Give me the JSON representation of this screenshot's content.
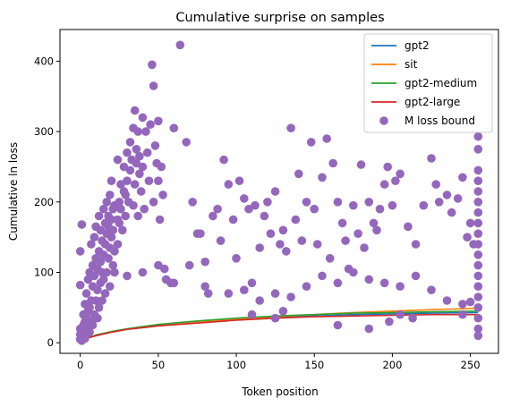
{
  "chart_data": {
    "type": "scatter",
    "title": "Cumulative surprise on samples",
    "xlabel": "Token position",
    "ylabel": "Cumulative ln loss",
    "xlim": [
      -13,
      268
    ],
    "ylim": [
      -15,
      445
    ],
    "xticks": [
      0,
      50,
      100,
      150,
      200,
      250
    ],
    "yticks": [
      0,
      100,
      200,
      300,
      400
    ],
    "grid": false,
    "legend_position": "top-right",
    "series": [
      {
        "name": "gpt2",
        "kind": "line",
        "color": "#1f77b4",
        "x": [
          0,
          2,
          5,
          10,
          20,
          30,
          50,
          75,
          100,
          125,
          150,
          175,
          200,
          225,
          255
        ],
        "y": [
          2,
          4,
          7,
          10,
          15,
          19,
          24,
          29,
          33,
          36,
          38,
          40,
          41,
          42,
          43
        ]
      },
      {
        "name": "sit",
        "kind": "line",
        "color": "#ff7f0e",
        "x": [
          0,
          2,
          5,
          10,
          20,
          30,
          50,
          75,
          100,
          125,
          150,
          175,
          200,
          225,
          255
        ],
        "y": [
          2,
          4,
          7,
          10,
          15,
          19,
          24,
          29,
          33,
          37,
          40,
          43,
          45,
          47,
          49
        ]
      },
      {
        "name": "gpt2-medium",
        "kind": "line",
        "color": "#2ca02c",
        "x": [
          0,
          2,
          5,
          10,
          20,
          30,
          50,
          75,
          100,
          125,
          150,
          175,
          200,
          225,
          255
        ],
        "y": [
          2,
          4,
          7,
          11,
          16,
          20,
          26,
          31,
          35,
          38,
          40,
          42,
          43,
          44,
          45
        ]
      },
      {
        "name": "gpt2-large",
        "kind": "line",
        "color": "#d62728",
        "x": [
          0,
          2,
          5,
          10,
          20,
          30,
          50,
          75,
          100,
          125,
          150,
          175,
          200,
          225,
          255
        ],
        "y": [
          2,
          4,
          7,
          10,
          15,
          19,
          24,
          28,
          32,
          35,
          37,
          38,
          39,
          40,
          40
        ]
      },
      {
        "name": "M loss bound",
        "kind": "scatter",
        "color": "#9467bd",
        "points": [
          [
            0,
            5
          ],
          [
            0,
            12
          ],
          [
            0,
            20
          ],
          [
            0,
            82
          ],
          [
            0,
            130
          ],
          [
            1,
            3
          ],
          [
            1,
            8
          ],
          [
            1,
            15
          ],
          [
            1,
            168
          ],
          [
            2,
            10
          ],
          [
            2,
            25
          ],
          [
            2,
            40
          ],
          [
            3,
            6
          ],
          [
            3,
            18
          ],
          [
            3,
            30
          ],
          [
            3,
            55
          ],
          [
            4,
            12
          ],
          [
            4,
            35
          ],
          [
            4,
            70
          ],
          [
            5,
            20
          ],
          [
            5,
            45
          ],
          [
            5,
            90
          ],
          [
            6,
            15
          ],
          [
            6,
            50
          ],
          [
            6,
            100
          ],
          [
            7,
            30
          ],
          [
            7,
            60
          ],
          [
            7,
            140
          ],
          [
            8,
            25
          ],
          [
            8,
            80
          ],
          [
            8,
            110
          ],
          [
            9,
            40
          ],
          [
            9,
            95
          ],
          [
            9,
            150
          ],
          [
            10,
            60
          ],
          [
            10,
            120
          ],
          [
            10,
            165
          ],
          [
            11,
            35
          ],
          [
            11,
            75
          ],
          [
            11,
            105
          ],
          [
            12,
            50
          ],
          [
            12,
            130
          ],
          [
            12,
            180
          ],
          [
            13,
            85
          ],
          [
            13,
            115
          ],
          [
            13,
            160
          ],
          [
            14,
            60
          ],
          [
            14,
            100
          ],
          [
            14,
            145
          ],
          [
            15,
            90
          ],
          [
            15,
            125
          ],
          [
            15,
            190
          ],
          [
            16,
            70
          ],
          [
            16,
            140
          ],
          [
            16,
            170
          ],
          [
            17,
            100
          ],
          [
            17,
            155
          ],
          [
            17,
            200
          ],
          [
            18,
            120
          ],
          [
            18,
            165
          ],
          [
            18,
            180
          ],
          [
            19,
            80
          ],
          [
            19,
            135
          ],
          [
            19,
            210
          ],
          [
            20,
            150
          ],
          [
            20,
            175
          ],
          [
            20,
            230
          ],
          [
            21,
            110
          ],
          [
            21,
            160
          ],
          [
            21,
            190
          ],
          [
            22,
            100
          ],
          [
            22,
            130
          ],
          [
            22,
            195
          ],
          [
            24,
            140
          ],
          [
            24,
            175
          ],
          [
            24,
            260
          ],
          [
            25,
            170
          ],
          [
            25,
            200
          ],
          [
            26,
            225
          ],
          [
            26,
            190
          ],
          [
            27,
            160
          ],
          [
            28,
            215
          ],
          [
            28,
            250
          ],
          [
            29,
            180
          ],
          [
            29,
            210
          ],
          [
            30,
            270
          ],
          [
            30,
            230
          ],
          [
            31,
            200
          ],
          [
            32,
            245
          ],
          [
            32,
            285
          ],
          [
            33,
            260
          ],
          [
            34,
            195
          ],
          [
            34,
            305
          ],
          [
            35,
            330
          ],
          [
            35,
            225
          ],
          [
            36,
            255
          ],
          [
            36,
            275
          ],
          [
            37,
            180
          ],
          [
            37,
            300
          ],
          [
            38,
            240
          ],
          [
            38,
            265
          ],
          [
            39,
            215
          ],
          [
            40,
            320
          ],
          [
            40,
            250
          ],
          [
            41,
            190
          ],
          [
            42,
            300
          ],
          [
            43,
            270
          ],
          [
            44,
            230
          ],
          [
            45,
            310
          ],
          [
            46,
            395
          ],
          [
            47,
            200
          ],
          [
            47,
            365
          ],
          [
            48,
            280
          ],
          [
            49,
            255
          ],
          [
            50,
            230
          ],
          [
            50,
            315
          ],
          [
            51,
            175
          ],
          [
            52,
            250
          ],
          [
            53,
            210
          ],
          [
            54,
            105
          ],
          [
            55,
            90
          ],
          [
            58,
            85
          ],
          [
            60,
            305
          ],
          [
            64,
            423
          ],
          [
            68,
            285
          ],
          [
            72,
            200
          ],
          [
            75,
            155
          ],
          [
            77,
            155
          ],
          [
            80,
            115
          ],
          [
            82,
            70
          ],
          [
            85,
            180
          ],
          [
            88,
            190
          ],
          [
            90,
            145
          ],
          [
            92,
            260
          ],
          [
            95,
            225
          ],
          [
            98,
            175
          ],
          [
            100,
            120
          ],
          [
            102,
            230
          ],
          [
            105,
            205
          ],
          [
            108,
            190
          ],
          [
            110,
            85
          ],
          [
            112,
            195
          ],
          [
            115,
            135
          ],
          [
            118,
            180
          ],
          [
            120,
            200
          ],
          [
            122,
            155
          ],
          [
            125,
            215
          ],
          [
            128,
            140
          ],
          [
            130,
            160
          ],
          [
            132,
            130
          ],
          [
            135,
            305
          ],
          [
            138,
            175
          ],
          [
            140,
            240
          ],
          [
            142,
            145
          ],
          [
            145,
            200
          ],
          [
            148,
            285
          ],
          [
            150,
            190
          ],
          [
            152,
            140
          ],
          [
            155,
            235
          ],
          [
            158,
            290
          ],
          [
            160,
            120
          ],
          [
            162,
            255
          ],
          [
            165,
            200
          ],
          [
            168,
            170
          ],
          [
            170,
            145
          ],
          [
            172,
            105
          ],
          [
            175,
            195
          ],
          [
            178,
            155
          ],
          [
            180,
            253
          ],
          [
            182,
            135
          ],
          [
            185,
            200
          ],
          [
            188,
            170
          ],
          [
            190,
            160
          ],
          [
            192,
            190
          ],
          [
            195,
            225
          ],
          [
            197,
            250
          ],
          [
            200,
            195
          ],
          [
            202,
            230
          ],
          [
            205,
            240
          ],
          [
            210,
            165
          ],
          [
            215,
            140
          ],
          [
            220,
            195
          ],
          [
            225,
            262
          ],
          [
            228,
            225
          ],
          [
            230,
            200
          ],
          [
            235,
            210
          ],
          [
            238,
            185
          ],
          [
            242,
            205
          ],
          [
            245,
            235
          ],
          [
            248,
            150
          ],
          [
            250,
            170
          ],
          [
            252,
            140
          ],
          [
            255,
            10
          ],
          [
            255,
            20
          ],
          [
            255,
            35
          ],
          [
            255,
            50
          ],
          [
            255,
            65
          ],
          [
            255,
            80
          ],
          [
            255,
            95
          ],
          [
            255,
            110
          ],
          [
            255,
            125
          ],
          [
            255,
            140
          ],
          [
            255,
            155
          ],
          [
            255,
            170
          ],
          [
            255,
            185
          ],
          [
            255,
            200
          ],
          [
            255,
            215
          ],
          [
            255,
            230
          ],
          [
            255,
            245
          ],
          [
            255,
            275
          ],
          [
            255,
            293
          ],
          [
            30,
            95
          ],
          [
            40,
            100
          ],
          [
            50,
            110
          ],
          [
            60,
            85
          ],
          [
            70,
            110
          ],
          [
            80,
            80
          ],
          [
            95,
            70
          ],
          [
            105,
            75
          ],
          [
            115,
            60
          ],
          [
            125,
            70
          ],
          [
            135,
            65
          ],
          [
            145,
            80
          ],
          [
            155,
            95
          ],
          [
            165,
            85
          ],
          [
            175,
            100
          ],
          [
            185,
            90
          ],
          [
            195,
            85
          ],
          [
            205,
            80
          ],
          [
            215,
            95
          ],
          [
            225,
            75
          ],
          [
            235,
            60
          ],
          [
            245,
            55
          ],
          [
            110,
            40
          ],
          [
            125,
            35
          ],
          [
            130,
            45
          ],
          [
            165,
            25
          ],
          [
            185,
            20
          ],
          [
            198,
            30
          ],
          [
            205,
            40
          ],
          [
            213,
            35
          ],
          [
            245,
            40
          ],
          [
            250,
            58
          ]
        ]
      }
    ]
  }
}
